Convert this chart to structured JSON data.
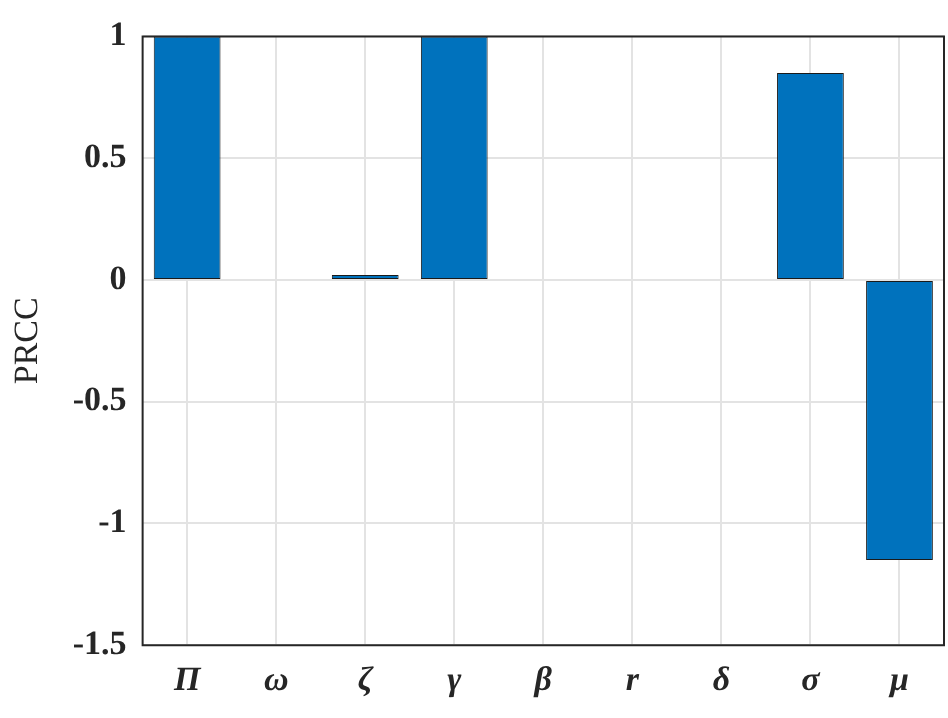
{
  "chart_data": {
    "type": "bar",
    "ylabel": "PRCC",
    "categories": [
      "Π",
      "ω",
      "ζ",
      "γ",
      "β",
      "r",
      "δ",
      "σ",
      "μ"
    ],
    "values": [
      1,
      0,
      0.02,
      1,
      0,
      0,
      0,
      0.85,
      -1.15
    ],
    "color": "#0072bd",
    "ylim": [
      -1.5,
      1
    ],
    "yticks": [
      -1.5,
      -1,
      -0.5,
      0,
      0.5,
      1
    ],
    "grid": true
  }
}
